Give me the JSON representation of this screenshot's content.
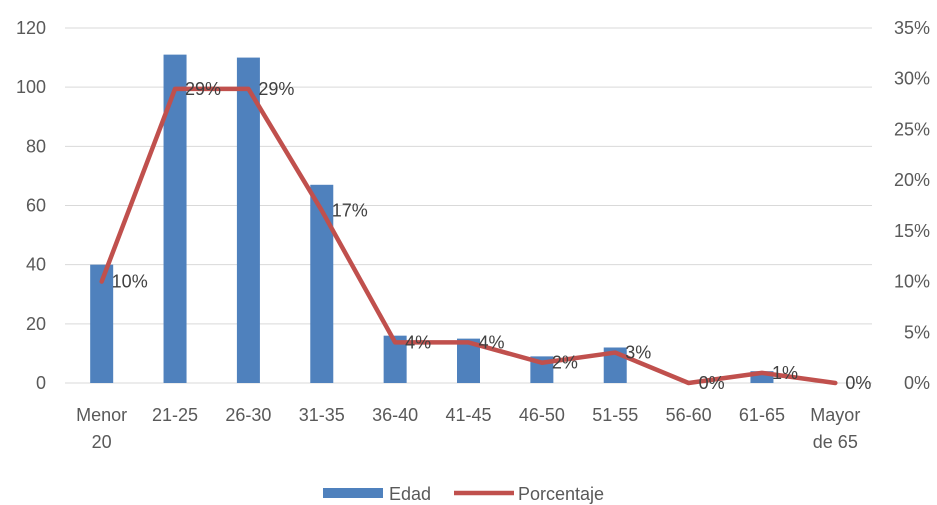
{
  "chart_data": {
    "type": "bar",
    "categories": [
      [
        "Menor",
        "20"
      ],
      [
        "21-25"
      ],
      [
        "26-30"
      ],
      [
        "31-35"
      ],
      [
        "36-40"
      ],
      [
        "41-45"
      ],
      [
        "46-50"
      ],
      [
        "51-55"
      ],
      [
        "56-60"
      ],
      [
        "61-65"
      ],
      [
        "Mayor",
        "de 65"
      ]
    ],
    "series": [
      {
        "name": "Edad",
        "type": "bar",
        "axis": "left",
        "color": "#4f81bd",
        "values": [
          40,
          111,
          110,
          67,
          16,
          15,
          9,
          12,
          0,
          4,
          0
        ]
      },
      {
        "name": "Porcentaje",
        "type": "line",
        "axis": "right",
        "color": "#c0504d",
        "values": [
          0.1,
          0.29,
          0.29,
          0.17,
          0.04,
          0.04,
          0.02,
          0.03,
          0.0,
          0.01,
          0.0
        ],
        "data_labels": [
          "10%",
          "29%",
          "29%",
          "17%",
          "4%",
          "4%",
          "2%",
          "3%",
          "0%",
          "1%",
          "0%"
        ]
      }
    ],
    "y_left": {
      "ylim": [
        0,
        120
      ],
      "ticks": [
        "0",
        "20",
        "40",
        "60",
        "80",
        "100",
        "120"
      ]
    },
    "y_right": {
      "ylim": [
        0,
        0.35
      ],
      "ticks": [
        "0%",
        "5%",
        "10%",
        "15%",
        "20%",
        "25%",
        "30%",
        "35%"
      ]
    },
    "grid": true,
    "legend": {
      "position": "bottom",
      "entries": [
        "Edad",
        "Porcentaje"
      ]
    }
  }
}
